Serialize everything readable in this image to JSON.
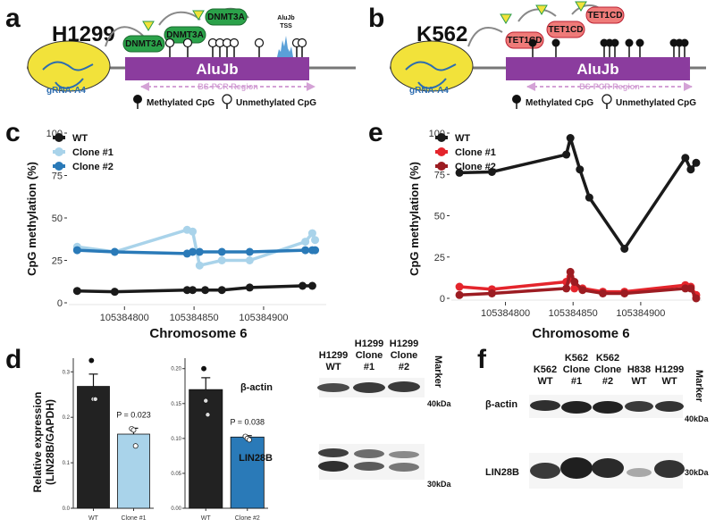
{
  "panels": {
    "a": {
      "label": "a",
      "cell": "H1299",
      "enzyme": "DNMT3A",
      "element": "AluJb",
      "tss": [
        "AluJb",
        "TSS"
      ],
      "grna": "gRNA-A4",
      "bs_region": "BS-PCR Region",
      "legend_methylated": "Methylated CpG",
      "legend_unmethylated": "Unmethylated CpG"
    },
    "b": {
      "label": "b",
      "cell": "K562",
      "enzyme": "TET1CD",
      "element": "AluJb",
      "grna": "gRNA-A4",
      "bs_region": "BS-PCR Region",
      "legend_methylated": "Methylated CpG",
      "legend_unmethylated": "Unmethylated CpG"
    },
    "c": {
      "label": "c"
    },
    "d": {
      "label": "d",
      "blot_lanes": [
        [
          "H1299",
          "WT"
        ],
        [
          "H1299",
          "Clone",
          "#1"
        ],
        [
          "H1299",
          "Clone",
          "#2"
        ],
        [
          "Marker"
        ]
      ],
      "band_labels": [
        "β-actin",
        "LIN28B"
      ],
      "markers": [
        "40kDa",
        "30kDa"
      ]
    },
    "e": {
      "label": "e"
    },
    "f": {
      "label": "f",
      "blot_lanes": [
        [
          "K562",
          "WT"
        ],
        [
          "K562",
          "Clone",
          "#1"
        ],
        [
          "K562",
          "Clone",
          "#2"
        ],
        [
          "H838",
          "WT"
        ],
        [
          "H1299",
          "WT"
        ],
        [
          "Marker"
        ]
      ],
      "band_labels": [
        "β-actin",
        "LIN28B"
      ],
      "markers": [
        "40kDa",
        "30kDa"
      ]
    }
  },
  "chart_data": [
    {
      "panel": "c",
      "type": "line",
      "xlabel": "Chromosome 6",
      "ylabel": "CpG methylation (%)",
      "ylim": [
        0,
        100
      ],
      "yticks": [
        0,
        25,
        50,
        75,
        100
      ],
      "xticks": [
        105384800,
        105384850,
        105384900
      ],
      "xlim": [
        105384760,
        105384945
      ],
      "series": [
        {
          "name": "WT",
          "color": "#1a1a1a",
          "x": [
            105384766,
            105384793,
            105384845,
            105384849,
            105384858,
            105384870,
            105384890,
            105384928,
            105384935
          ],
          "y": [
            7,
            6.5,
            7.5,
            7.5,
            7.5,
            7.5,
            9,
            10,
            10
          ]
        },
        {
          "name": "Clone #1",
          "color": "#a9d3ea",
          "x": [
            105384766,
            105384793,
            105384845,
            105384849,
            105384854,
            105384870,
            105384890,
            105384930,
            105384935,
            105384937
          ],
          "y": [
            33,
            30,
            43,
            42,
            22,
            25,
            25,
            36,
            41,
            37
          ]
        },
        {
          "name": "Clone #2",
          "color": "#2a7ab8",
          "x": [
            105384766,
            105384793,
            105384845,
            105384849,
            105384854,
            105384870,
            105384890,
            105384930,
            105384935,
            105384937
          ],
          "y": [
            31,
            30,
            29,
            30,
            30,
            30,
            30,
            31,
            31,
            31
          ]
        }
      ]
    },
    {
      "panel": "e",
      "type": "line",
      "xlabel": "Chromosome 6",
      "ylabel": "CpG methylation (%)",
      "ylim": [
        0,
        100
      ],
      "yticks": [
        0,
        25,
        50,
        75,
        100
      ],
      "xticks": [
        105384800,
        105384850,
        105384900
      ],
      "xlim": [
        105384760,
        105384945
      ],
      "series": [
        {
          "name": "WT",
          "color": "#1a1a1a",
          "x": [
            105384766,
            105384790,
            105384845,
            105384848,
            105384855,
            105384862,
            105384888,
            105384933,
            105384937,
            105384941
          ],
          "y": [
            76,
            76.5,
            87,
            97,
            78,
            61,
            30,
            85,
            78,
            82
          ]
        },
        {
          "name": "Clone #1",
          "color": "#e4252c",
          "x": [
            105384766,
            105384790,
            105384845,
            105384848,
            105384851,
            105384857,
            105384872,
            105384888,
            105384933,
            105384937,
            105384941
          ],
          "y": [
            7,
            5.5,
            10,
            13,
            6,
            6,
            4,
            4,
            8,
            7,
            2
          ]
        },
        {
          "name": "Clone #2",
          "color": "#9c1c22",
          "x": [
            105384766,
            105384790,
            105384845,
            105384848,
            105384851,
            105384857,
            105384872,
            105384888,
            105384933,
            105384937,
            105384941
          ],
          "y": [
            2,
            3,
            6,
            16,
            10,
            5,
            3,
            3,
            6,
            6,
            0
          ]
        }
      ]
    },
    {
      "panel": "d-left",
      "type": "bar",
      "ylabel": "Relative expression (LIN28B/GAPDH)",
      "ylim": [
        0,
        0.33
      ],
      "yticks": [
        0.0,
        0.1,
        0.2,
        0.3
      ],
      "categories": [
        "WT",
        "Clone #1"
      ],
      "values": [
        0.268,
        0.163
      ],
      "errors": [
        0.027,
        0.013
      ],
      "colors": [
        "#222222",
        "#a9d3ea"
      ],
      "points": [
        [
          0.325,
          0.24,
          0.24
        ],
        [
          0.175,
          0.172,
          0.137
        ]
      ],
      "annotation": "P = 0.023"
    },
    {
      "panel": "d-right",
      "type": "bar",
      "ylim": [
        0,
        0.215
      ],
      "yticks": [
        0.0,
        0.05,
        0.1,
        0.15,
        0.2
      ],
      "categories": [
        "WT",
        "Clone #2"
      ],
      "values": [
        0.17,
        0.102
      ],
      "errors": [
        0.017,
        0.002
      ],
      "colors": [
        "#222222",
        "#2a7ab8"
      ],
      "points": [
        [
          0.2,
          0.154,
          0.134
        ],
        [
          0.103,
          0.1,
          0.098
        ]
      ],
      "annotation": "P = 0.038"
    }
  ],
  "tick_fmt": {
    "c": [
      "0",
      "25",
      "50",
      "75",
      "100"
    ],
    "e": [
      "0",
      "25",
      "50",
      "75",
      "100"
    ],
    "dl": [
      "0.0",
      "0.1",
      "0.2",
      "0.3"
    ],
    "dr": [
      "0.00",
      "0.05",
      "0.10",
      "0.15",
      "0.20"
    ]
  }
}
